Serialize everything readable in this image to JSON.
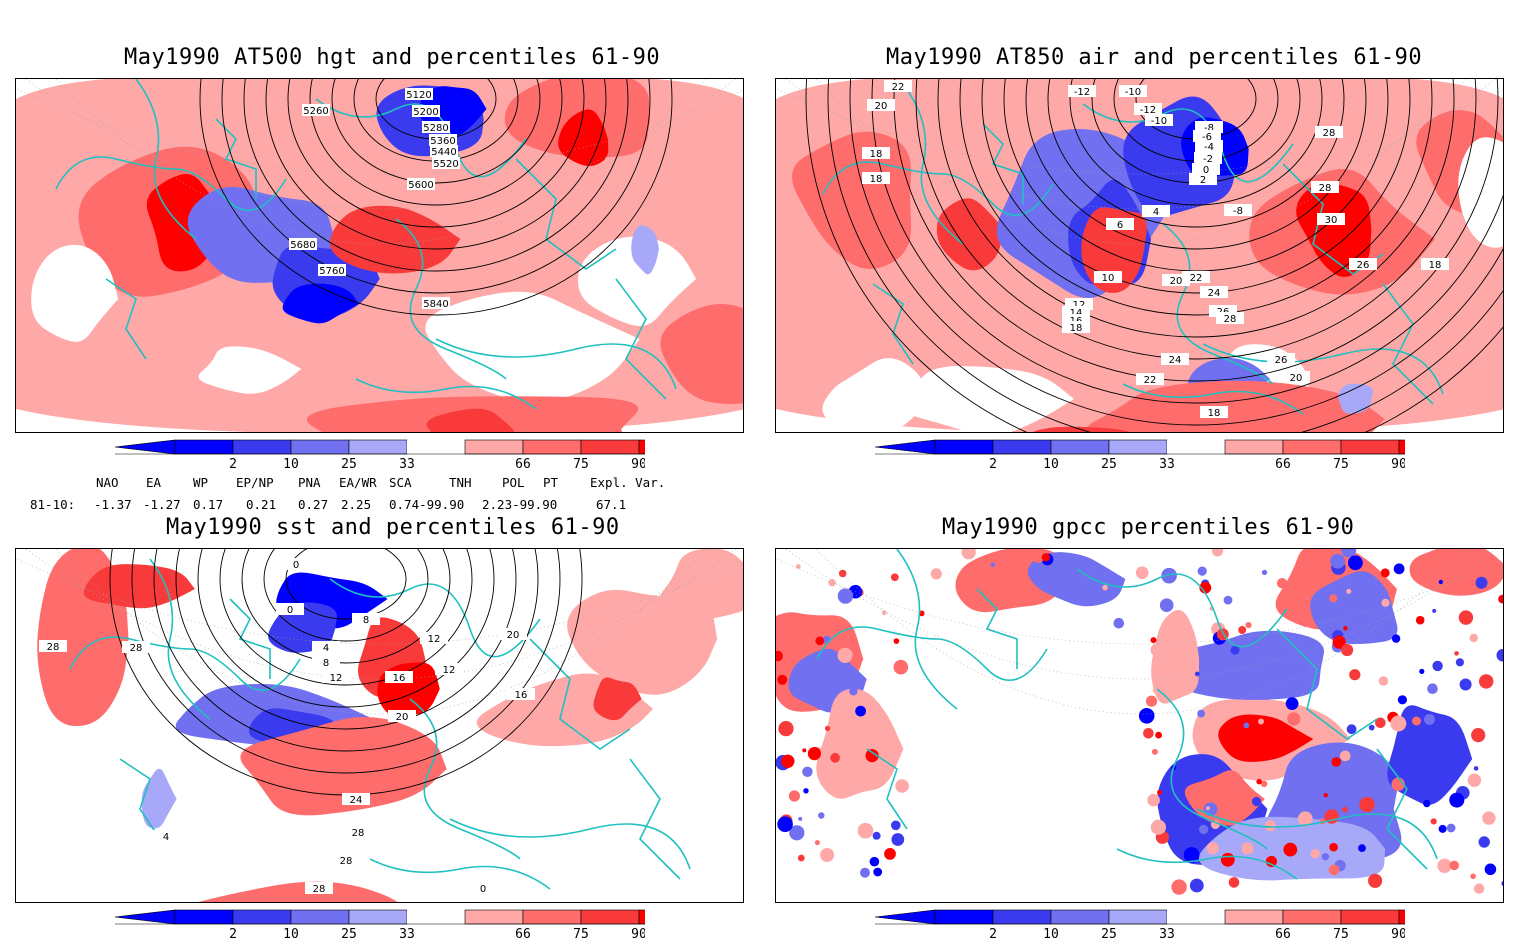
{
  "colors": {
    "b2": "#0000ff",
    "b10": "#3a3aef",
    "b25": "#7070f0",
    "b33": "#a8a8f8",
    "white": "#ffffff",
    "r66": "#ffa8a8",
    "r75": "#ff6c6c",
    "r90": "#f83a3a",
    "r98": "#ff0000",
    "coast": "#20c0c0"
  },
  "colorbar": {
    "labels": [
      "2",
      "10",
      "25",
      "33",
      "66",
      "75",
      "90",
      "98"
    ]
  },
  "panels": [
    {
      "id": "hgt",
      "title": "May1990 AT500 hgt and percentiles 61-90",
      "contour_labels": [
        "5120",
        "5200",
        "5260",
        "5280",
        "5360",
        "5440",
        "5520",
        "5600",
        "5680",
        "5760",
        "5840"
      ]
    },
    {
      "id": "air",
      "title": "May1990 AT850 air and percentiles 61-90",
      "contour_labels": [
        "22",
        "20",
        "18",
        "18",
        "-12",
        "-10",
        "-12",
        "-10",
        "-8",
        "-6",
        "-4",
        "-2",
        "0",
        "2",
        "6",
        "4",
        "-8",
        "28",
        "28",
        "30",
        "26",
        "18",
        "10",
        "12",
        "14",
        "16",
        "18",
        "20",
        "22",
        "24",
        "26",
        "28",
        "24",
        "22",
        "26",
        "20",
        "18"
      ]
    },
    {
      "id": "sst",
      "title": "May1990 sst and percentiles 61-90",
      "contour_labels": [
        "28",
        "28",
        "0",
        "0",
        "4",
        "8",
        "12",
        "16",
        "20",
        "24",
        "28",
        "28",
        "28",
        "0",
        "4",
        "8",
        "12",
        "12",
        "16",
        "20"
      ]
    },
    {
      "id": "gpcc",
      "title": "May1990 gpcc percentiles 61-90",
      "contour_labels": []
    }
  ],
  "indices": {
    "headers": [
      "NAO",
      "EA",
      "WP",
      "EP/NP",
      "PNA",
      "EA/WR",
      "SCA",
      "TNH",
      "POL",
      "PT",
      "Expl. Var."
    ],
    "row_label": "81-10:",
    "values": [
      "-1.37",
      "-1.27",
      "0.17",
      "0.21",
      "0.27",
      "2.25",
      "0.74-99.90",
      "2.23-99.90",
      "67.1"
    ]
  }
}
